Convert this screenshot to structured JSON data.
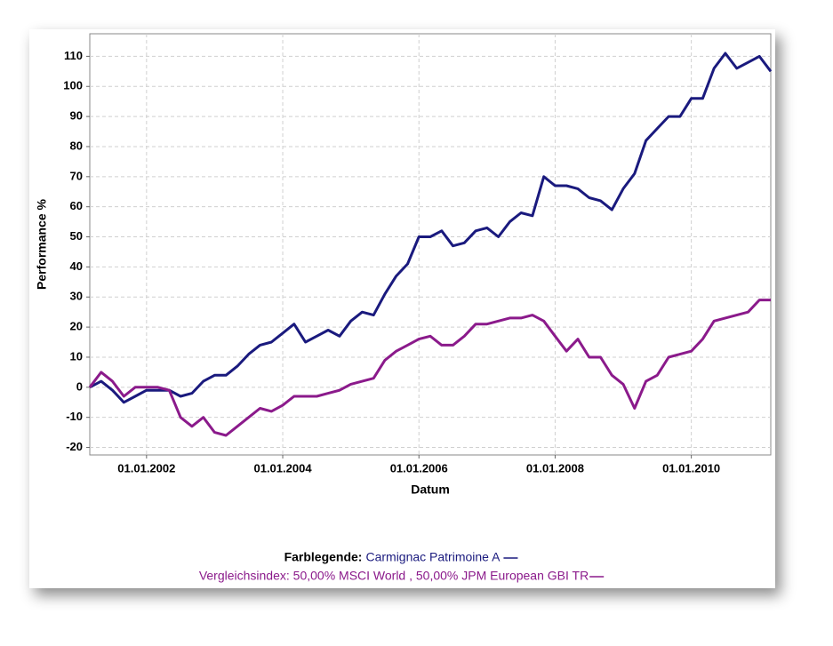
{
  "chart_data": {
    "type": "line",
    "xlabel": "Datum",
    "ylabel": "Performance %",
    "legend_title": "Farblegende:",
    "x": [
      "2001-03",
      "2001-05",
      "2001-07",
      "2001-09",
      "2001-11",
      "2002-01",
      "2002-03",
      "2002-05",
      "2002-07",
      "2002-09",
      "2002-11",
      "2003-01",
      "2003-03",
      "2003-05",
      "2003-07",
      "2003-09",
      "2003-11",
      "2004-01",
      "2004-03",
      "2004-05",
      "2004-07",
      "2004-09",
      "2004-11",
      "2005-01",
      "2005-03",
      "2005-05",
      "2005-07",
      "2005-09",
      "2005-11",
      "2006-01",
      "2006-03",
      "2006-05",
      "2006-07",
      "2006-09",
      "2006-11",
      "2007-01",
      "2007-03",
      "2007-05",
      "2007-07",
      "2007-09",
      "2007-11",
      "2008-01",
      "2008-03",
      "2008-05",
      "2008-07",
      "2008-09",
      "2008-11",
      "2009-01",
      "2009-03",
      "2009-05",
      "2009-07",
      "2009-09",
      "2009-11",
      "2010-01",
      "2010-03",
      "2010-05",
      "2010-07",
      "2010-09",
      "2010-11",
      "2011-01",
      "2011-03"
    ],
    "series": [
      {
        "name": "Carmignac Patrimoine A",
        "color": "#1a1a7e",
        "values": [
          0,
          2,
          -1,
          -5,
          -3,
          -1,
          -1,
          -1,
          -3,
          -2,
          2,
          4,
          4,
          7,
          11,
          14,
          15,
          18,
          21,
          15,
          17,
          19,
          17,
          22,
          25,
          24,
          31,
          37,
          41,
          50,
          50,
          52,
          47,
          48,
          52,
          53,
          50,
          55,
          58,
          57,
          70,
          67,
          67,
          66,
          63,
          62,
          59,
          66,
          71,
          82,
          86,
          90,
          90,
          96,
          96,
          106,
          111,
          106,
          108,
          110,
          105
        ]
      },
      {
        "name": "Vergleichsindex: 50,00% MSCI World , 50,00% JPM European GBI TR",
        "color": "#8b1a8b",
        "values": [
          0,
          5,
          2,
          -3,
          0,
          0,
          0,
          -1,
          -10,
          -13,
          -10,
          -15,
          -16,
          -13,
          -10,
          -7,
          -8,
          -6,
          -3,
          -3,
          -3,
          -2,
          -1,
          1,
          2,
          3,
          9,
          12,
          14,
          16,
          17,
          14,
          14,
          17,
          21,
          21,
          22,
          23,
          23,
          24,
          22,
          17,
          12,
          16,
          10,
          10,
          4,
          1,
          -7,
          2,
          4,
          10,
          11,
          12,
          16,
          22,
          23,
          24,
          25,
          29,
          29
        ]
      }
    ],
    "xlim": [
      "2001-03",
      "2011-03"
    ],
    "xticks": [
      {
        "value": "2002-01",
        "label": "01.01.2002"
      },
      {
        "value": "2004-01",
        "label": "01.01.2004"
      },
      {
        "value": "2006-01",
        "label": "01.01.2006"
      },
      {
        "value": "2008-01",
        "label": "01.01.2008"
      },
      {
        "value": "2010-01",
        "label": "01.01.2010"
      }
    ],
    "ylim": [
      -22.5,
      117.5
    ],
    "yticks": [
      -20,
      -10,
      0,
      10,
      20,
      30,
      40,
      50,
      60,
      70,
      80,
      90,
      100,
      110
    ],
    "grid": true
  }
}
